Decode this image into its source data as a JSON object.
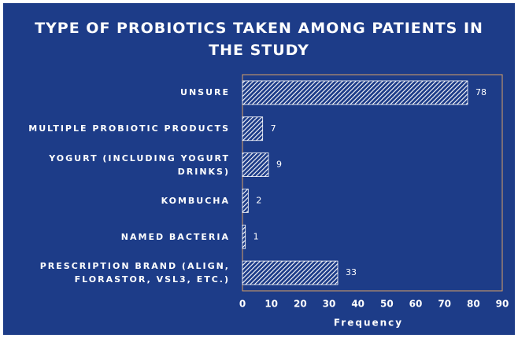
{
  "chart_data": {
    "type": "barh",
    "title": "TYPE OF PROBIOTICS TAKEN AMONG PATIENTS IN THE STUDY",
    "categories": [
      "UNSURE",
      "MULTIPLE PROBIOTIC PRODUCTS",
      "YOGURT (INCLUDING YOGURT DRINKS)",
      "KOMBUCHA",
      "NAMED BACTERIA",
      "PRESCRIPTION BRAND (ALIGN, FLORASTOR, VSL3, ETC.)"
    ],
    "values": [
      78,
      7,
      9,
      2,
      1,
      33
    ],
    "xlabel": "Frequency",
    "xlim": [
      0,
      90
    ],
    "xticks": [
      0,
      10,
      20,
      30,
      40,
      50,
      60,
      70,
      80,
      90
    ],
    "color": "#ffffff",
    "background": "#1d3c88",
    "frame_color": "#d9a066",
    "grid": false
  }
}
